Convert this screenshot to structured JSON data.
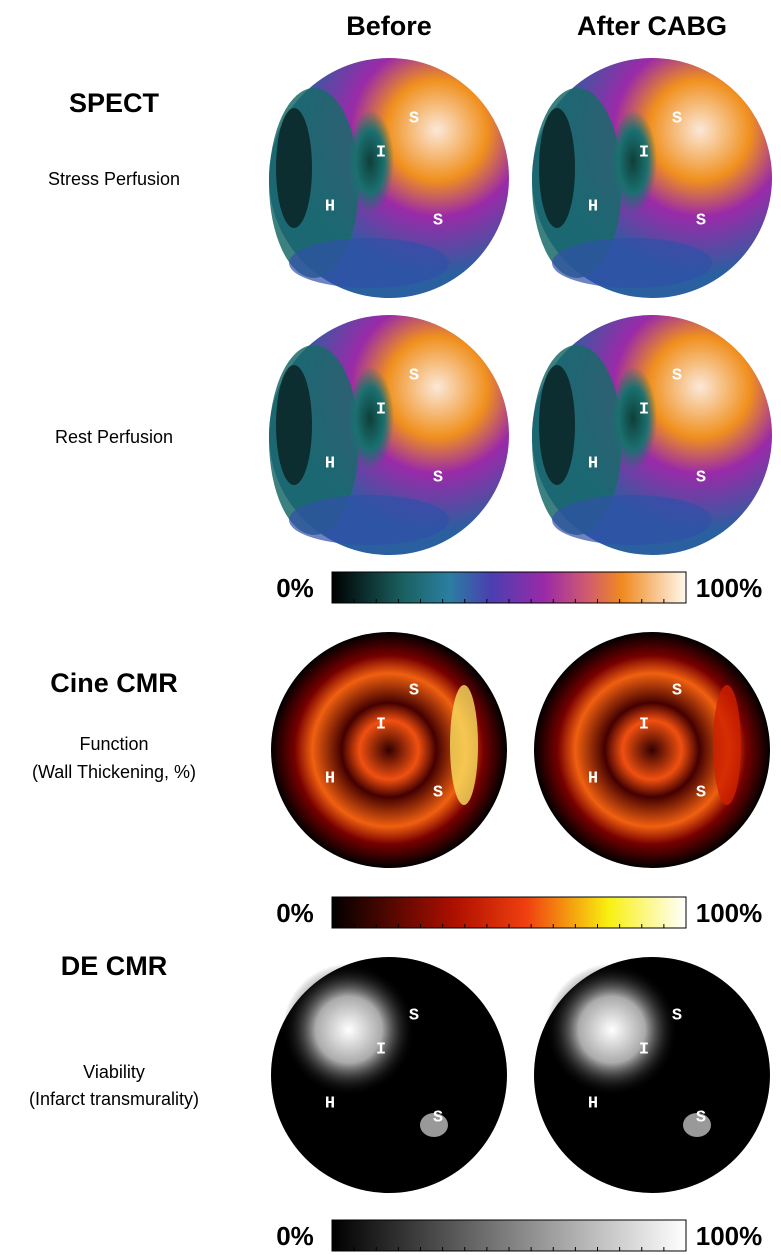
{
  "header": {
    "columns": [
      "Before",
      "After CABG"
    ]
  },
  "segment_labels": [
    "S",
    "I",
    "H",
    "S"
  ],
  "sections": [
    {
      "title": "SPECT",
      "rows": [
        {
          "lines": [
            "Stress Perfusion"
          ]
        },
        {
          "lines": [
            "Rest Perfusion"
          ]
        }
      ],
      "colorbar": {
        "min_label": "0%",
        "max_label": "100%"
      }
    },
    {
      "title": "Cine CMR",
      "rows": [
        {
          "lines": [
            "Function",
            "(Wall Thickening, %)"
          ]
        }
      ],
      "colorbar": {
        "min_label": "0%",
        "max_label": "100%"
      }
    },
    {
      "title": "DE CMR",
      "rows": [
        {
          "lines": [
            "Viability",
            "(Infarct transmurality)"
          ]
        }
      ],
      "colorbar": {
        "min_label": "0%",
        "max_label": "100%"
      }
    }
  ]
}
